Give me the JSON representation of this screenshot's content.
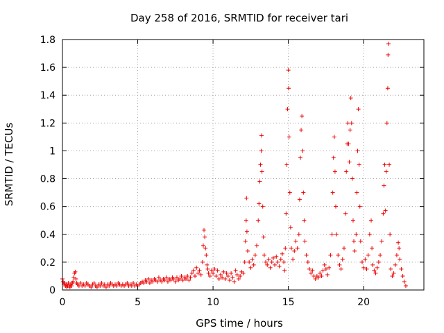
{
  "chart_data": {
    "type": "scatter",
    "title": "Day 258 of 2016, SRMTID for receiver tari",
    "xlabel": "GPS time / hours",
    "ylabel": "SRMTID / TECUs",
    "xlim": [
      0,
      24
    ],
    "ylim": [
      0,
      1.8
    ],
    "xticks": [
      "0",
      "5",
      "10",
      "15",
      "20"
    ],
    "xtick_values": [
      0,
      5,
      10,
      15,
      20
    ],
    "yticks": [
      "0",
      "0.2",
      "0.4",
      "0.6",
      "0.8",
      "1",
      "1.2",
      "1.4",
      "1.6",
      "1.8"
    ],
    "ytick_values": [
      0,
      0.2,
      0.4,
      0.6,
      0.8,
      1.0,
      1.2,
      1.4,
      1.6,
      1.8
    ],
    "grid": true,
    "marker": "+",
    "marker_color": "#ee0000",
    "series": [
      {
        "name": "SRMTID",
        "points": [
          [
            0.0,
            0.08
          ],
          [
            0.05,
            0.06
          ],
          [
            0.1,
            0.04
          ],
          [
            0.15,
            0.05
          ],
          [
            0.2,
            0.03
          ],
          [
            0.25,
            0.04
          ],
          [
            0.3,
            0.02
          ],
          [
            0.35,
            0.03
          ],
          [
            0.4,
            0.05
          ],
          [
            0.45,
            0.03
          ],
          [
            0.5,
            0.02
          ],
          [
            0.55,
            0.04
          ],
          [
            0.6,
            0.03
          ],
          [
            0.65,
            0.05
          ],
          [
            0.7,
            0.06
          ],
          [
            0.75,
            0.09
          ],
          [
            0.8,
            0.12
          ],
          [
            0.85,
            0.13
          ],
          [
            0.9,
            0.08
          ],
          [
            0.95,
            0.05
          ],
          [
            1.0,
            0.04
          ],
          [
            1.1,
            0.03
          ],
          [
            1.2,
            0.05
          ],
          [
            1.3,
            0.03
          ],
          [
            1.4,
            0.04
          ],
          [
            1.5,
            0.03
          ],
          [
            1.6,
            0.05
          ],
          [
            1.7,
            0.04
          ],
          [
            1.8,
            0.03
          ],
          [
            1.9,
            0.02
          ],
          [
            2.0,
            0.04
          ],
          [
            2.1,
            0.05
          ],
          [
            2.2,
            0.03
          ],
          [
            2.3,
            0.02
          ],
          [
            2.4,
            0.04
          ],
          [
            2.5,
            0.03
          ],
          [
            2.6,
            0.05
          ],
          [
            2.7,
            0.03
          ],
          [
            2.8,
            0.04
          ],
          [
            2.9,
            0.02
          ],
          [
            3.0,
            0.04
          ],
          [
            3.1,
            0.03
          ],
          [
            3.2,
            0.05
          ],
          [
            3.3,
            0.04
          ],
          [
            3.4,
            0.03
          ],
          [
            3.5,
            0.04
          ],
          [
            3.6,
            0.03
          ],
          [
            3.7,
            0.05
          ],
          [
            3.8,
            0.04
          ],
          [
            3.9,
            0.03
          ],
          [
            4.0,
            0.04
          ],
          [
            4.1,
            0.03
          ],
          [
            4.2,
            0.04
          ],
          [
            4.3,
            0.05
          ],
          [
            4.4,
            0.03
          ],
          [
            4.5,
            0.04
          ],
          [
            4.6,
            0.03
          ],
          [
            4.7,
            0.05
          ],
          [
            4.8,
            0.03
          ],
          [
            4.9,
            0.04
          ],
          [
            5.0,
            0.03
          ],
          [
            5.1,
            0.04
          ],
          [
            5.2,
            0.05
          ],
          [
            5.3,
            0.06
          ],
          [
            5.4,
            0.05
          ],
          [
            5.5,
            0.07
          ],
          [
            5.6,
            0.06
          ],
          [
            5.7,
            0.08
          ],
          [
            5.8,
            0.05
          ],
          [
            5.9,
            0.07
          ],
          [
            6.0,
            0.06
          ],
          [
            6.1,
            0.08
          ],
          [
            6.2,
            0.07
          ],
          [
            6.3,
            0.06
          ],
          [
            6.4,
            0.09
          ],
          [
            6.5,
            0.07
          ],
          [
            6.6,
            0.06
          ],
          [
            6.7,
            0.08
          ],
          [
            6.8,
            0.07
          ],
          [
            6.9,
            0.09
          ],
          [
            7.0,
            0.06
          ],
          [
            7.1,
            0.08
          ],
          [
            7.2,
            0.07
          ],
          [
            7.3,
            0.09
          ],
          [
            7.4,
            0.08
          ],
          [
            7.5,
            0.06
          ],
          [
            7.6,
            0.09
          ],
          [
            7.7,
            0.07
          ],
          [
            7.8,
            0.08
          ],
          [
            7.9,
            0.1
          ],
          [
            8.0,
            0.07
          ],
          [
            8.1,
            0.09
          ],
          [
            8.2,
            0.08
          ],
          [
            8.3,
            0.1
          ],
          [
            8.4,
            0.07
          ],
          [
            8.5,
            0.09
          ],
          [
            8.6,
            0.12
          ],
          [
            8.7,
            0.14
          ],
          [
            8.8,
            0.1
          ],
          [
            8.9,
            0.16
          ],
          [
            9.0,
            0.12
          ],
          [
            9.1,
            0.14
          ],
          [
            9.2,
            0.11
          ],
          [
            9.3,
            0.2
          ],
          [
            9.35,
            0.32
          ],
          [
            9.4,
            0.43
          ],
          [
            9.45,
            0.38
          ],
          [
            9.5,
            0.3
          ],
          [
            9.55,
            0.25
          ],
          [
            9.6,
            0.18
          ],
          [
            9.65,
            0.15
          ],
          [
            9.7,
            0.12
          ],
          [
            9.8,
            0.1
          ],
          [
            9.9,
            0.14
          ],
          [
            10.0,
            0.12
          ],
          [
            10.1,
            0.15
          ],
          [
            10.2,
            0.1
          ],
          [
            10.3,
            0.14
          ],
          [
            10.4,
            0.08
          ],
          [
            10.5,
            0.11
          ],
          [
            10.6,
            0.09
          ],
          [
            10.7,
            0.13
          ],
          [
            10.8,
            0.08
          ],
          [
            10.9,
            0.12
          ],
          [
            11.0,
            0.1
          ],
          [
            11.1,
            0.07
          ],
          [
            11.2,
            0.12
          ],
          [
            11.3,
            0.09
          ],
          [
            11.4,
            0.06
          ],
          [
            11.5,
            0.14
          ],
          [
            11.6,
            0.11
          ],
          [
            11.7,
            0.08
          ],
          [
            11.8,
            0.1
          ],
          [
            11.9,
            0.13
          ],
          [
            12.0,
            0.12
          ],
          [
            12.1,
            0.2
          ],
          [
            12.15,
            0.35
          ],
          [
            12.2,
            0.5
          ],
          [
            12.22,
            0.66
          ],
          [
            12.25,
            0.42
          ],
          [
            12.3,
            0.28
          ],
          [
            12.4,
            0.2
          ],
          [
            12.5,
            0.16
          ],
          [
            12.6,
            0.22
          ],
          [
            12.7,
            0.18
          ],
          [
            12.8,
            0.25
          ],
          [
            12.9,
            0.32
          ],
          [
            13.0,
            0.5
          ],
          [
            13.05,
            0.62
          ],
          [
            13.1,
            0.78
          ],
          [
            13.15,
            0.9
          ],
          [
            13.2,
            1.0
          ],
          [
            13.22,
            1.11
          ],
          [
            13.25,
            0.85
          ],
          [
            13.3,
            0.6
          ],
          [
            13.35,
            0.38
          ],
          [
            13.4,
            0.25
          ],
          [
            13.5,
            0.2
          ],
          [
            13.6,
            0.18
          ],
          [
            13.7,
            0.22
          ],
          [
            13.8,
            0.16
          ],
          [
            13.9,
            0.2
          ],
          [
            14.0,
            0.23
          ],
          [
            14.1,
            0.18
          ],
          [
            14.2,
            0.24
          ],
          [
            14.3,
            0.2
          ],
          [
            14.4,
            0.17
          ],
          [
            14.5,
            0.22
          ],
          [
            14.6,
            0.26
          ],
          [
            14.7,
            0.2
          ],
          [
            14.75,
            0.14
          ],
          [
            14.8,
            0.3
          ],
          [
            14.85,
            0.55
          ],
          [
            14.9,
            0.9
          ],
          [
            14.95,
            1.3
          ],
          [
            15.0,
            1.58
          ],
          [
            15.02,
            1.45
          ],
          [
            15.05,
            1.1
          ],
          [
            15.1,
            0.7
          ],
          [
            15.15,
            0.45
          ],
          [
            15.2,
            0.3
          ],
          [
            15.3,
            0.22
          ],
          [
            15.4,
            0.28
          ],
          [
            15.5,
            0.35
          ],
          [
            15.6,
            0.3
          ],
          [
            15.7,
            0.4
          ],
          [
            15.75,
            0.65
          ],
          [
            15.8,
            0.95
          ],
          [
            15.85,
            1.15
          ],
          [
            15.9,
            1.25
          ],
          [
            15.95,
            1.0
          ],
          [
            16.0,
            0.7
          ],
          [
            16.05,
            0.5
          ],
          [
            16.1,
            0.35
          ],
          [
            16.2,
            0.25
          ],
          [
            16.3,
            0.2
          ],
          [
            16.4,
            0.15
          ],
          [
            16.5,
            0.12
          ],
          [
            16.6,
            0.14
          ],
          [
            16.7,
            0.1
          ],
          [
            16.8,
            0.08
          ],
          [
            16.9,
            0.1
          ],
          [
            17.0,
            0.09
          ],
          [
            17.1,
            0.12
          ],
          [
            17.2,
            0.1
          ],
          [
            17.3,
            0.14
          ],
          [
            17.4,
            0.18
          ],
          [
            17.5,
            0.15
          ],
          [
            17.6,
            0.11
          ],
          [
            17.7,
            0.16
          ],
          [
            17.8,
            0.25
          ],
          [
            17.9,
            0.4
          ],
          [
            17.95,
            0.7
          ],
          [
            18.0,
            0.95
          ],
          [
            18.05,
            1.1
          ],
          [
            18.1,
            0.85
          ],
          [
            18.15,
            0.6
          ],
          [
            18.2,
            0.4
          ],
          [
            18.3,
            0.25
          ],
          [
            18.4,
            0.18
          ],
          [
            18.5,
            0.15
          ],
          [
            18.6,
            0.22
          ],
          [
            18.7,
            0.3
          ],
          [
            18.8,
            0.55
          ],
          [
            18.85,
            0.85
          ],
          [
            18.9,
            1.05
          ],
          [
            18.95,
            1.2
          ],
          [
            19.0,
            1.05
          ],
          [
            19.05,
            0.92
          ],
          [
            19.1,
            1.15
          ],
          [
            19.15,
            1.38
          ],
          [
            19.2,
            1.2
          ],
          [
            19.25,
            0.8
          ],
          [
            19.3,
            0.5
          ],
          [
            19.35,
            0.35
          ],
          [
            19.4,
            0.28
          ],
          [
            19.5,
            0.4
          ],
          [
            19.55,
            0.7
          ],
          [
            19.6,
            1.0
          ],
          [
            19.65,
            1.3
          ],
          [
            19.7,
            0.9
          ],
          [
            19.75,
            0.6
          ],
          [
            19.8,
            0.35
          ],
          [
            19.9,
            0.2
          ],
          [
            20.0,
            0.16
          ],
          [
            20.1,
            0.22
          ],
          [
            20.2,
            0.15
          ],
          [
            20.3,
            0.25
          ],
          [
            20.4,
            0.4
          ],
          [
            20.5,
            0.5
          ],
          [
            20.55,
            0.3
          ],
          [
            20.6,
            0.18
          ],
          [
            20.7,
            0.14
          ],
          [
            20.8,
            0.12
          ],
          [
            20.9,
            0.16
          ],
          [
            21.0,
            0.2
          ],
          [
            21.1,
            0.25
          ],
          [
            21.2,
            0.35
          ],
          [
            21.3,
            0.55
          ],
          [
            21.35,
            0.75
          ],
          [
            21.4,
            0.9
          ],
          [
            21.45,
            0.57
          ],
          [
            21.5,
            0.85
          ],
          [
            21.55,
            1.2
          ],
          [
            21.6,
            1.45
          ],
          [
            21.62,
            1.69
          ],
          [
            21.65,
            1.77
          ],
          [
            21.7,
            0.9
          ],
          [
            21.75,
            0.4
          ],
          [
            21.8,
            0.15
          ],
          [
            21.9,
            0.1
          ],
          [
            22.0,
            0.12
          ],
          [
            22.1,
            0.18
          ],
          [
            22.2,
            0.25
          ],
          [
            22.3,
            0.34
          ],
          [
            22.35,
            0.3
          ],
          [
            22.4,
            0.22
          ],
          [
            22.5,
            0.15
          ],
          [
            22.6,
            0.1
          ],
          [
            22.7,
            0.06
          ],
          [
            22.8,
            0.03
          ]
        ]
      }
    ]
  }
}
